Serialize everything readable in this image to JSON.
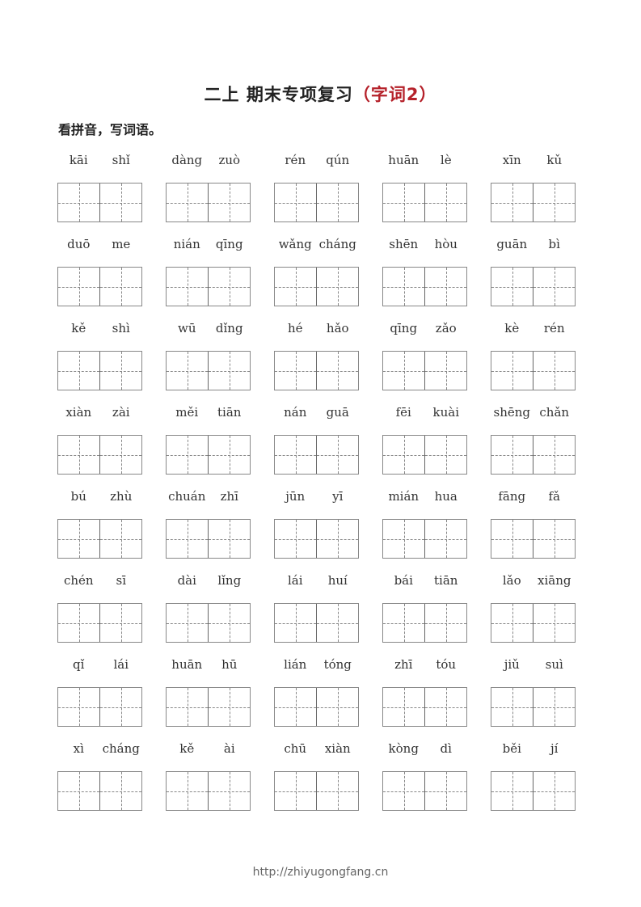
{
  "title": {
    "main": "二上 期末专项复习",
    "highlight": "（字词2）",
    "highlight_color": "#b5212a"
  },
  "instruction": "看拼音，写词语。",
  "words": [
    [
      [
        "kāi",
        "shǐ"
      ],
      [
        "dàng",
        "zuò"
      ],
      [
        "rén",
        "qún"
      ],
      [
        "huān",
        "lè"
      ],
      [
        "xīn",
        "kǔ"
      ]
    ],
    [
      [
        "duō",
        "me"
      ],
      [
        "nián",
        "qīng"
      ],
      [
        "wǎng",
        "cháng"
      ],
      [
        "shēn",
        "hòu"
      ],
      [
        "guān",
        "bì"
      ]
    ],
    [
      [
        "kě",
        "shì"
      ],
      [
        "wū",
        "dǐng"
      ],
      [
        "hé",
        "hǎo"
      ],
      [
        "qīng",
        "zǎo"
      ],
      [
        "kè",
        "rén"
      ]
    ],
    [
      [
        "xiàn",
        "zài"
      ],
      [
        "měi",
        "tiān"
      ],
      [
        "nán",
        "guā"
      ],
      [
        "fēi",
        "kuài"
      ],
      [
        "shēng",
        "chǎn"
      ]
    ],
    [
      [
        "bú",
        "zhù"
      ],
      [
        "chuán",
        "zhī"
      ],
      [
        "jūn",
        "yī"
      ],
      [
        "mián",
        "hua"
      ],
      [
        "fāng",
        "fǎ"
      ]
    ],
    [
      [
        "chén",
        "sī"
      ],
      [
        "dài",
        "lǐng"
      ],
      [
        "lái",
        "huí"
      ],
      [
        "bái",
        "tiān"
      ],
      [
        "lǎo",
        "xiāng"
      ]
    ],
    [
      [
        "qǐ",
        "lái"
      ],
      [
        "huān",
        "hū"
      ],
      [
        "lián",
        "tóng"
      ],
      [
        "zhī",
        "tóu"
      ],
      [
        "jiǔ",
        "suì"
      ]
    ],
    [
      [
        "xì",
        "cháng"
      ],
      [
        "kě",
        "ài"
      ],
      [
        "chū",
        "xiàn"
      ],
      [
        "kòng",
        "dì"
      ],
      [
        "běi",
        "jí"
      ]
    ]
  ],
  "footer": "http://zhiyugongfang.cn"
}
